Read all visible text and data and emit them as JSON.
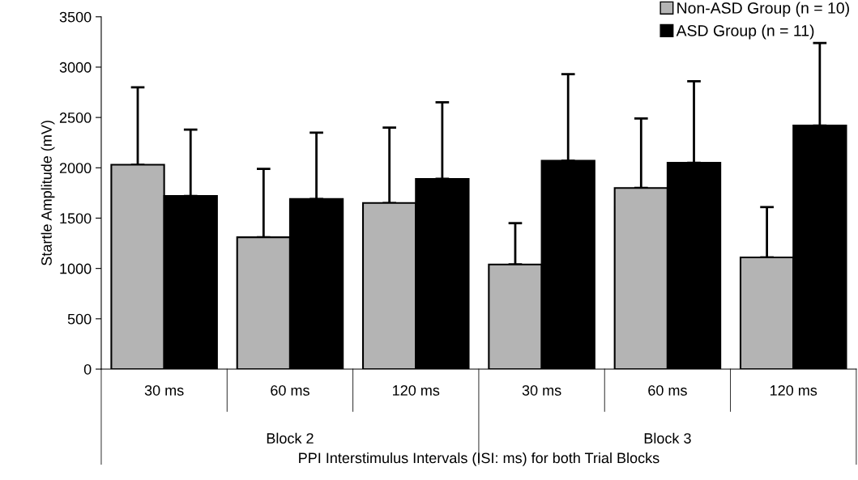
{
  "chart_data": {
    "type": "bar",
    "categories": [
      "30 ms",
      "60 ms",
      "120 ms",
      "30 ms",
      "60 ms",
      "120 ms"
    ],
    "series": [
      {
        "name": "Non-ASD Group (n = 10)",
        "color": "#b4b4b4",
        "values": [
          2030,
          1310,
          1650,
          1040,
          1800,
          1110
        ],
        "errors": [
          [
            2030,
            2800
          ],
          [
            1310,
            1990
          ],
          [
            1650,
            2400
          ],
          [
            1040,
            1450
          ],
          [
            1800,
            2490
          ],
          [
            1110,
            1610
          ]
        ]
      },
      {
        "name": "ASD Group (n = 11)",
        "color": "#000000",
        "values": [
          1720,
          1690,
          1890,
          2070,
          2050,
          2420
        ],
        "errors": [
          [
            1720,
            2380
          ],
          [
            1690,
            2350
          ],
          [
            1890,
            2650
          ],
          [
            2070,
            2930
          ],
          [
            2050,
            2860
          ],
          [
            2420,
            3240
          ]
        ]
      }
    ],
    "annotations": [
      "Block 2",
      "Block 3"
    ],
    "xlabel": "PPI Interstimulus Intervals (ISI: ms) for both Trial Blocks",
    "ylabel": "Startle Amplitude (mV)",
    "ylim": [
      0,
      3500
    ],
    "yticks": [
      0,
      500,
      1000,
      1500,
      2000,
      2500,
      3000,
      3500
    ],
    "legend": "top right"
  }
}
